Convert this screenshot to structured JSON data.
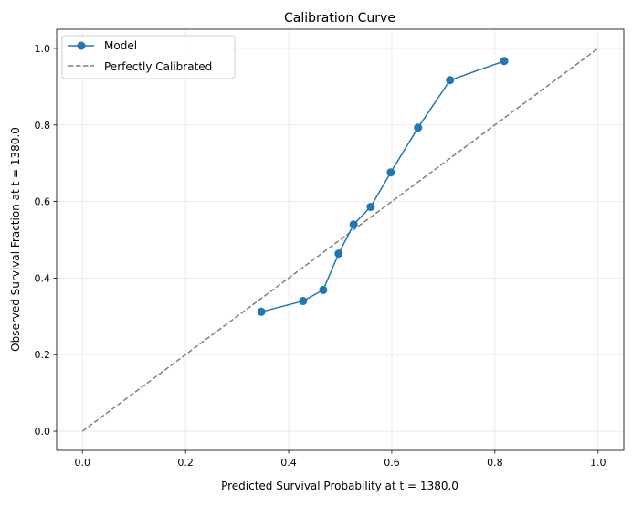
{
  "chart_data": {
    "type": "line",
    "title": "Calibration Curve",
    "xlabel": "Predicted Survival Probability at t = 1380.0",
    "ylabel": "Observed Survival Fraction at t = 1380.0",
    "xlim": [
      -0.05,
      1.05
    ],
    "ylim": [
      -0.05,
      1.05
    ],
    "xticks": [
      "0.0",
      "0.2",
      "0.4",
      "0.6",
      "0.8",
      "1.0"
    ],
    "yticks": [
      "0.0",
      "0.2",
      "0.4",
      "0.6",
      "0.8",
      "1.0"
    ],
    "grid": true,
    "legend_position": "top-left",
    "series": [
      {
        "name": "Model",
        "color": "#1f77b4",
        "marker": "circle",
        "x": [
          0.347,
          0.428,
          0.467,
          0.497,
          0.526,
          0.559,
          0.598,
          0.651,
          0.713,
          0.818
        ],
        "y": [
          0.312,
          0.34,
          0.369,
          0.464,
          0.54,
          0.586,
          0.676,
          0.793,
          0.917,
          0.967
        ]
      },
      {
        "name": "Perfectly Calibrated",
        "color": "#808080",
        "style": "dashed",
        "x": [
          0,
          1
        ],
        "y": [
          0,
          1
        ]
      }
    ]
  }
}
